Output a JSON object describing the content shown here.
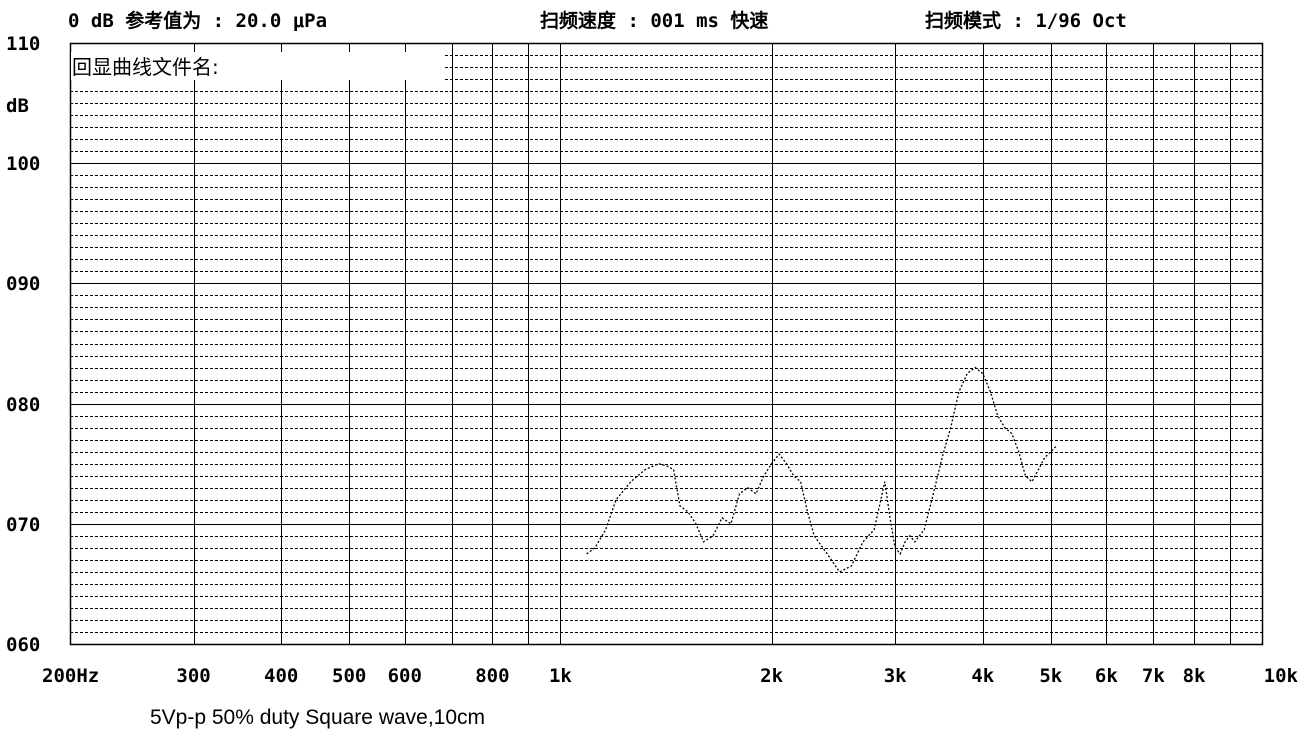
{
  "header": {
    "ref": "0 dB 参考值为 : 20.0 μPa",
    "sweep_speed": "扫频速度 : 001 ms 快速",
    "sweep_mode": "扫频模式 : 1/96  Oct",
    "file_label": "回显曲线文件名:"
  },
  "caption": "5Vp-p 50% duty Square wave,10cm",
  "chart_data": {
    "type": "line",
    "x_scale": "log",
    "xlim": [
      200,
      10000
    ],
    "ylim": [
      60,
      110
    ],
    "ylabel": "dB",
    "y_ticks": [
      {
        "value": 110,
        "label": "110"
      },
      {
        "value": 100,
        "label": "100"
      },
      {
        "value": 90,
        "label": "090"
      },
      {
        "value": 80,
        "label": "080"
      },
      {
        "value": 70,
        "label": "070"
      },
      {
        "value": 60,
        "label": "060"
      }
    ],
    "x_ticks": [
      {
        "value": 200,
        "label": "200Hz"
      },
      {
        "value": 300,
        "label": "300"
      },
      {
        "value": 400,
        "label": "400"
      },
      {
        "value": 500,
        "label": "500"
      },
      {
        "value": 600,
        "label": "600"
      },
      {
        "value": 800,
        "label": "800"
      },
      {
        "value": 1000,
        "label": "1k"
      },
      {
        "value": 2000,
        "label": "2k"
      },
      {
        "value": 3000,
        "label": "3k"
      },
      {
        "value": 4000,
        "label": "4k"
      },
      {
        "value": 5000,
        "label": "5k"
      },
      {
        "value": 6000,
        "label": "6k"
      },
      {
        "value": 7000,
        "label": "7k"
      },
      {
        "value": 8000,
        "label": "8k"
      },
      {
        "value": 10000,
        "label": "10k"
      }
    ],
    "grid": true,
    "series": [
      {
        "line_style": "dashed",
        "color": "#000000",
        "x": [
          1090,
          1120,
          1160,
          1200,
          1260,
          1320,
          1380,
          1420,
          1450,
          1480,
          1520,
          1560,
          1600,
          1650,
          1700,
          1750,
          1800,
          1850,
          1900,
          1950,
          2000,
          2050,
          2100,
          2150,
          2200,
          2250,
          2300,
          2400,
          2500,
          2600,
          2700,
          2800,
          2850,
          2900,
          2950,
          3000,
          3050,
          3100,
          3150,
          3200,
          3300,
          3400,
          3500,
          3600,
          3700,
          3800,
          3900,
          4000,
          4100,
          4200,
          4300,
          4400,
          4500,
          4600,
          4700,
          4800,
          4900,
          5000,
          5100
        ],
        "y": [
          67.5,
          68,
          69.5,
          72,
          73.5,
          74.5,
          75,
          74.8,
          74.5,
          71.5,
          71,
          70,
          68.5,
          69,
          70.5,
          70,
          72.5,
          73,
          72.5,
          74,
          75,
          75.8,
          75,
          74,
          73.5,
          71,
          69,
          67.5,
          66,
          66.5,
          68.5,
          69.5,
          71.5,
          73.5,
          70.5,
          68,
          67.5,
          68.5,
          69,
          68.5,
          69.5,
          72.5,
          75.5,
          78,
          81,
          82.5,
          83,
          82.5,
          81,
          79,
          78,
          77.5,
          76,
          74,
          73.5,
          74.5,
          75.5,
          76,
          76.5
        ]
      }
    ]
  }
}
